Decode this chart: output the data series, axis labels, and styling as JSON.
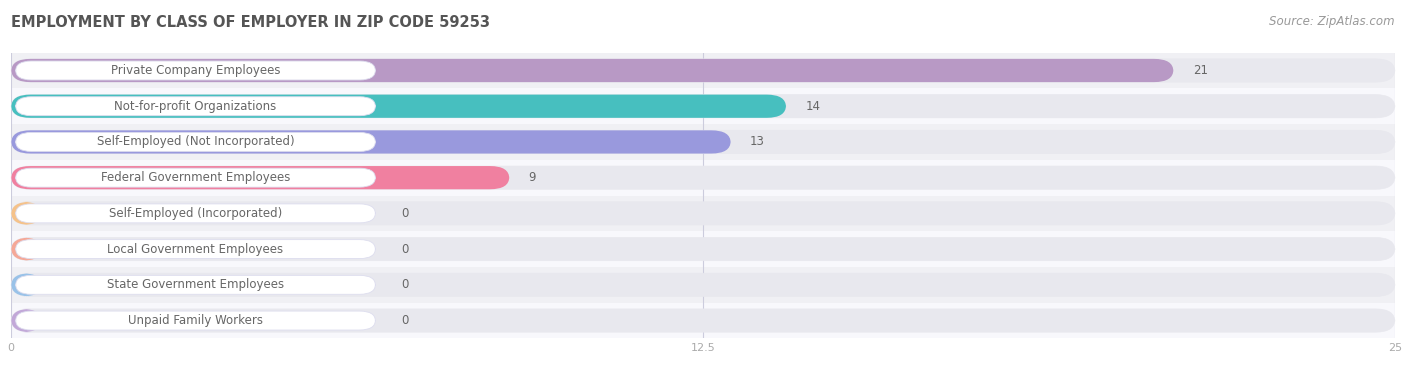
{
  "title": "EMPLOYMENT BY CLASS OF EMPLOYER IN ZIP CODE 59253",
  "source": "Source: ZipAtlas.com",
  "categories": [
    "Private Company Employees",
    "Not-for-profit Organizations",
    "Self-Employed (Not Incorporated)",
    "Federal Government Employees",
    "Self-Employed (Incorporated)",
    "Local Government Employees",
    "State Government Employees",
    "Unpaid Family Workers"
  ],
  "values": [
    21,
    14,
    13,
    9,
    0,
    0,
    0,
    0
  ],
  "bar_colors": [
    "#b899c5",
    "#47bfbf",
    "#9999dd",
    "#f080a0",
    "#f5c28a",
    "#f5a898",
    "#99c2e8",
    "#c2a8d8"
  ],
  "xlim": [
    0,
    25
  ],
  "xticks": [
    0,
    12.5,
    25
  ],
  "title_fontsize": 10.5,
  "source_fontsize": 8.5,
  "label_fontsize": 8.5,
  "value_fontsize": 8.5,
  "bar_height": 0.65,
  "row_bg_odd": "#f0f0f4",
  "row_bg_even": "#f8f8fc",
  "bar_bg_color": "#e8e8ee",
  "label_box_color": "#ffffff",
  "label_box_edge": "#ddddee",
  "grid_color": "#ccccdd",
  "text_color": "#666666",
  "zero_bar_width": 6.8
}
